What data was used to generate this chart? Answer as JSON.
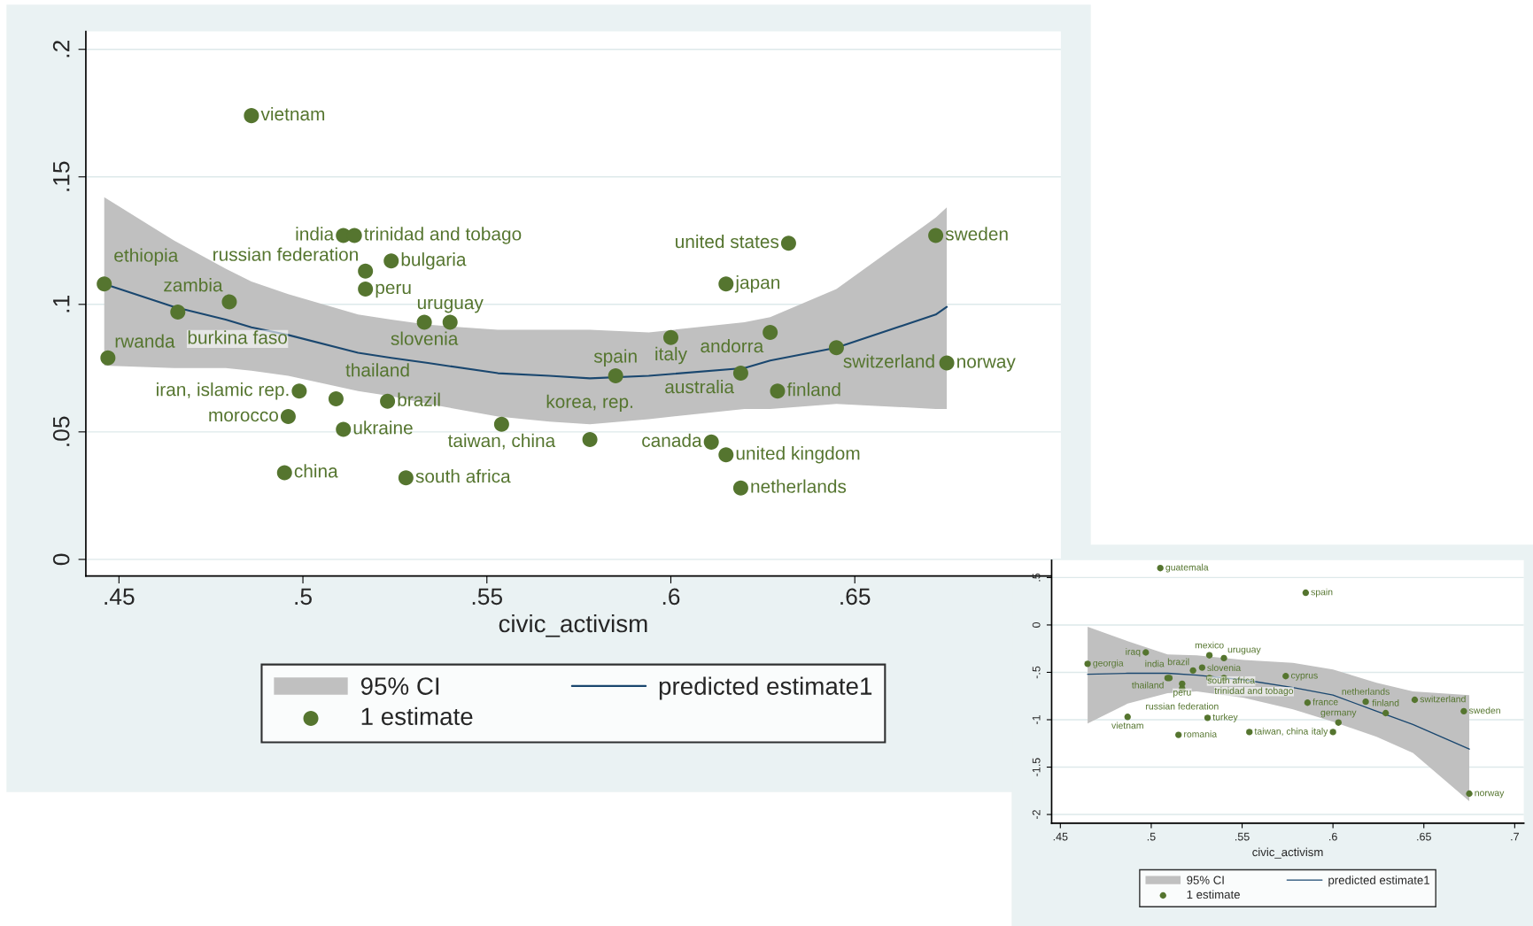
{
  "chart_data": [
    {
      "type": "scatter",
      "xlabel": "civic_activism",
      "xlim": [
        0.441,
        0.706
      ],
      "ylim": [
        -0.0065,
        0.207
      ],
      "xticks": [
        {
          "value": 0.45,
          "label": ".45"
        },
        {
          "value": 0.5,
          "label": ".5"
        },
        {
          "value": 0.55,
          "label": ".55"
        },
        {
          "value": 0.6,
          "label": ".6"
        },
        {
          "value": 0.65,
          "label": ".65"
        }
      ],
      "yticks": [
        0,
        {
          "value": 0.05,
          "label": ".05"
        },
        {
          "value": 0.1,
          "label": ".1"
        },
        {
          "value": 0.15,
          "label": ".15"
        },
        {
          "value": 0.2,
          "label": ".2"
        }
      ],
      "grid": "y",
      "legend": "bottom",
      "annotations": [
        "95% CI"
      ],
      "series": [
        {
          "name": "predicted estimate1",
          "type": "line",
          "color": "#1a476f",
          "x": [
            0.446,
            0.465,
            0.479,
            0.486,
            0.496,
            0.515,
            0.524,
            0.534,
            0.553,
            0.567,
            0.578,
            0.594,
            0.62,
            0.627,
            0.645,
            0.672,
            0.675
          ],
          "values": [
            0.108,
            0.099,
            0.094,
            0.091,
            0.088,
            0.081,
            0.079,
            0.077,
            0.073,
            0.072,
            0.071,
            0.072,
            0.075,
            0.078,
            0.083,
            0.096,
            0.099
          ],
          "upper": [
            0.142,
            0.125,
            0.114,
            0.109,
            0.104,
            0.096,
            0.094,
            0.092,
            0.09,
            0.09,
            0.09,
            0.089,
            0.093,
            0.095,
            0.106,
            0.134,
            0.138
          ],
          "lower": [
            0.076,
            0.075,
            0.075,
            0.074,
            0.072,
            0.066,
            0.064,
            0.061,
            0.056,
            0.054,
            0.053,
            0.055,
            0.059,
            0.059,
            0.061,
            0.059,
            0.059
          ]
        },
        {
          "name": "1 estimate",
          "color": "#55752f",
          "marker": "circle",
          "x": [
            0.486,
            0.511,
            0.514,
            0.524,
            0.517,
            0.517,
            0.446,
            0.48,
            0.466,
            0.533,
            0.54,
            0.447,
            0.499,
            0.509,
            0.523,
            0.496,
            0.511,
            0.554,
            0.578,
            0.495,
            0.528,
            0.585,
            0.6,
            0.619,
            0.627,
            0.629,
            0.645,
            0.675,
            0.672,
            0.632,
            0.615,
            0.611,
            0.615,
            0.619
          ],
          "values": [
            0.174,
            0.127,
            0.127,
            0.117,
            0.113,
            0.106,
            0.108,
            0.101,
            0.097,
            0.093,
            0.093,
            0.079,
            0.066,
            0.063,
            0.062,
            0.056,
            0.051,
            0.053,
            0.047,
            0.034,
            0.032,
            0.072,
            0.087,
            0.073,
            0.089,
            0.066,
            0.083,
            0.077,
            0.127,
            0.124,
            0.108,
            0.046,
            0.041,
            0.028
          ],
          "value_labels": [
            "vietnam",
            "india",
            "trinidad and tobago",
            "bulgaria",
            "russian federation",
            "peru",
            "ethiopia",
            "zambia",
            "burkina faso",
            "slovenia",
            "uruguay",
            "rwanda",
            "iran, islamic rep.",
            "thailand",
            "brazil",
            "morocco",
            "ukraine",
            "taiwan, china",
            "korea, rep.",
            "china",
            "south africa",
            "spain",
            "italy",
            "australia",
            "andorra",
            "finland",
            "switzerland",
            "norway",
            "sweden",
            "united states",
            "japan",
            "canada",
            "united kingdom",
            "netherlands"
          ]
        }
      ]
    },
    {
      "type": "scatter",
      "xlabel": "civic_activism",
      "xlim": [
        0.4452,
        0.705
      ],
      "ylim": [
        -2.092,
        0.683
      ],
      "xticks": [
        {
          "value": 0.45,
          "label": ".45"
        },
        {
          "value": 0.5,
          "label": ".5"
        },
        {
          "value": 0.55,
          "label": ".55"
        },
        {
          "value": 0.6,
          "label": ".6"
        },
        {
          "value": 0.65,
          "label": ".65"
        },
        {
          "value": 0.7,
          "label": ".7"
        }
      ],
      "yticks": [
        {
          "value": 0.5,
          "label": ".5"
        },
        0,
        {
          "value": -0.5,
          "label": "-.5"
        },
        {
          "value": -1,
          "label": "-1"
        },
        {
          "value": -1.5,
          "label": "-1.5"
        },
        {
          "value": -2,
          "label": "-2"
        }
      ],
      "grid": "y",
      "legend": "bottom",
      "annotations": [
        "95% CI"
      ],
      "series": [
        {
          "name": "predicted estimate1",
          "type": "line",
          "color": "#1a476f",
          "x": [
            0.465,
            0.487,
            0.509,
            0.525,
            0.551,
            0.578,
            0.6,
            0.624,
            0.644,
            0.675
          ],
          "values": [
            -0.52,
            -0.51,
            -0.51,
            -0.53,
            -0.58,
            -0.66,
            -0.74,
            -0.91,
            -1.05,
            -1.31
          ],
          "upper": [
            -0.02,
            -0.17,
            -0.31,
            -0.32,
            -0.37,
            -0.4,
            -0.47,
            -0.61,
            -0.7,
            -0.74
          ],
          "lower": [
            -1.04,
            -0.83,
            -0.72,
            -0.7,
            -0.77,
            -0.89,
            -1.02,
            -1.18,
            -1.35,
            -1.86
          ]
        },
        {
          "name": "1 estimate",
          "color": "#55752f",
          "marker": "circle",
          "x": [
            0.505,
            0.585,
            0.497,
            0.465,
            0.532,
            0.54,
            0.528,
            0.523,
            0.574,
            0.509,
            0.51,
            0.532,
            0.54,
            0.517,
            0.517,
            0.487,
            0.531,
            0.515,
            0.554,
            0.586,
            0.603,
            0.6,
            0.618,
            0.645,
            0.629,
            0.672,
            0.675
          ],
          "values": [
            0.6,
            0.34,
            -0.29,
            -0.41,
            -0.32,
            -0.35,
            -0.45,
            -0.48,
            -0.54,
            -0.56,
            -0.56,
            -0.56,
            -0.56,
            -0.62,
            -0.67,
            -0.97,
            -0.98,
            -1.16,
            -1.13,
            -0.82,
            -1.03,
            -1.13,
            -0.81,
            -0.79,
            -0.93,
            -0.91,
            -1.78
          ],
          "value_labels": [
            "guatemala",
            "spain",
            "iraq",
            "georgia",
            "mexico",
            "uruguay",
            "south africa",
            "brazil",
            "cyprus",
            "thailand",
            "india",
            "trinidad and tobago",
            "slovenia",
            "peru",
            "russian federation",
            "vietnam",
            "turkey",
            "romania",
            "taiwan, china",
            "france",
            "germany",
            "italy",
            "netherlands",
            "switzerland",
            "finland",
            "sweden",
            "norway"
          ]
        }
      ]
    }
  ]
}
